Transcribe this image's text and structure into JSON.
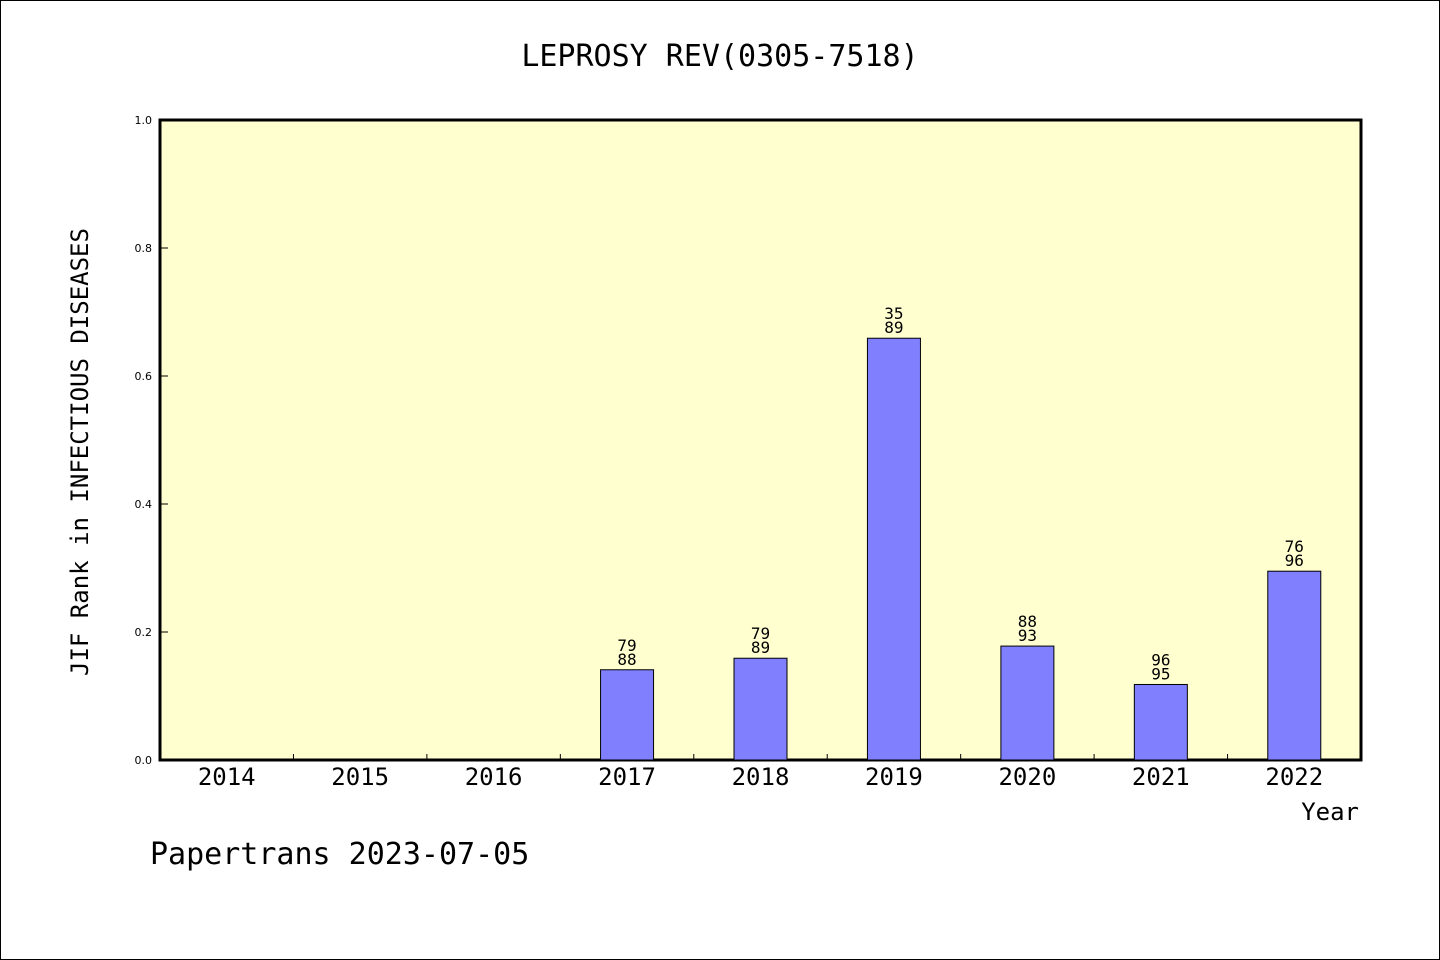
{
  "chart_data": {
    "type": "bar",
    "title": "LEPROSY REV(0305-7518)",
    "xlabel": "Year",
    "ylabel": "JIF Rank in INFECTIOUS DISEASES",
    "ylim": [
      0,
      1.0
    ],
    "yticks": [
      "0.0",
      "0.2",
      "0.4",
      "0.6",
      "0.8",
      "1.0"
    ],
    "categories": [
      "2014",
      "2015",
      "2016",
      "2017",
      "2018",
      "2019",
      "2020",
      "2021",
      "2022"
    ],
    "values": [
      null,
      null,
      null,
      0.141,
      0.159,
      0.659,
      0.178,
      0.118,
      0.295
    ],
    "bar_labels": [
      null,
      null,
      null,
      [
        "79",
        "88"
      ],
      [
        "79",
        "89"
      ],
      [
        "35",
        "89"
      ],
      [
        "88",
        "93"
      ],
      [
        "96",
        "95"
      ],
      [
        "76",
        "96"
      ]
    ],
    "grid": false,
    "colors": {
      "plot_bg": "#ffffd0",
      "bar": "#8080ff",
      "axis": "#000000"
    }
  },
  "footer": {
    "credit": "Papertrans 2023-07-05"
  }
}
